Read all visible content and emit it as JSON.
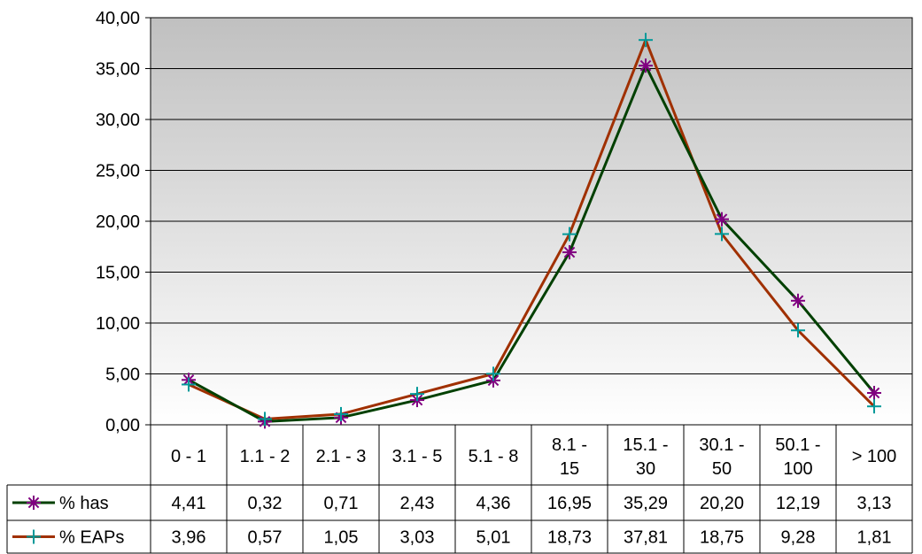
{
  "chart_data": {
    "type": "line",
    "title": "",
    "xlabel": "",
    "ylabel": "",
    "ylim": [
      0,
      40
    ],
    "yticks": [
      "0,00",
      "5,00",
      "10,00",
      "15,00",
      "20,00",
      "25,00",
      "30,00",
      "35,00",
      "40,00"
    ],
    "grid": "horizontal",
    "legend": "data-table",
    "categories": [
      [
        "0 - 1"
      ],
      [
        "1.1 - 2"
      ],
      [
        "2.1 - 3"
      ],
      [
        "3.1 - 5"
      ],
      [
        "5.1 - 8"
      ],
      [
        "8.1 -",
        "15"
      ],
      [
        "15.1 -",
        "30"
      ],
      [
        "30.1 -",
        "50"
      ],
      [
        "50.1 -",
        "100"
      ],
      [
        "> 100"
      ]
    ],
    "series": [
      {
        "name": "% has",
        "line_color": "#004000",
        "marker": "star",
        "marker_color": "#800080",
        "values": [
          4.41,
          0.32,
          0.71,
          2.43,
          4.36,
          16.95,
          35.29,
          20.2,
          12.19,
          3.13
        ],
        "labels": [
          "4,41",
          "0,32",
          "0,71",
          "2,43",
          "4,36",
          "16,95",
          "35,29",
          "20,20",
          "12,19",
          "3,13"
        ]
      },
      {
        "name": "% EAPs",
        "line_color": "#A03000",
        "marker": "plus",
        "marker_color": "#009999",
        "values": [
          3.96,
          0.57,
          1.05,
          3.03,
          5.01,
          18.73,
          37.81,
          18.75,
          9.28,
          1.81
        ],
        "labels": [
          "3,96",
          "0,57",
          "1,05",
          "3,03",
          "5,01",
          "18,73",
          "37,81",
          "18,75",
          "9,28",
          "1,81"
        ]
      }
    ]
  }
}
